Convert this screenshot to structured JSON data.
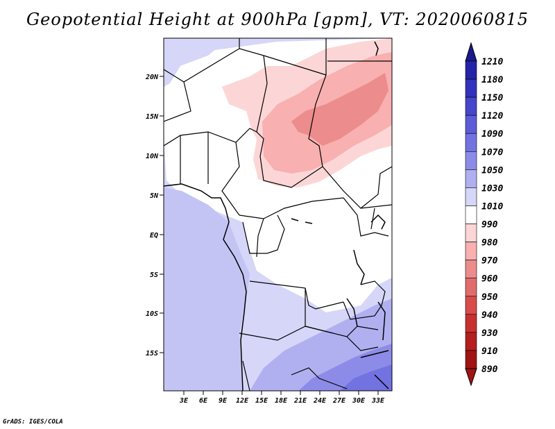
{
  "title": "Geopotential Height at 900hPa [gpm], VT: 2020060815",
  "credit": "GrADS: IGES/COLA",
  "map": {
    "lat_labels": [
      "20N",
      "15N",
      "10N",
      "5N",
      "EQ",
      "5S",
      "10S",
      "15S"
    ],
    "lon_labels": [
      "3E",
      "6E",
      "9E",
      "12E",
      "15E",
      "18E",
      "21E",
      "24E",
      "27E",
      "30E",
      "33E"
    ]
  },
  "colorbar": {
    "levels": [
      "1210",
      "1180",
      "1150",
      "1120",
      "1090",
      "1070",
      "1050",
      "1030",
      "1010",
      "990",
      "980",
      "970",
      "960",
      "950",
      "940",
      "930",
      "910",
      "890"
    ],
    "colors": [
      "#1a1a8c",
      "#2424a8",
      "#3232bc",
      "#4646cc",
      "#5c5cd8",
      "#7272e0",
      "#8c8ce8",
      "#b0b0f0",
      "#d6d6f8",
      "#ffffff",
      "#fcd6d6",
      "#f8b0b0",
      "#ec8c8c",
      "#e06c6c",
      "#d84c4c",
      "#c83030",
      "#b41e1e",
      "#a01414"
    ]
  }
}
